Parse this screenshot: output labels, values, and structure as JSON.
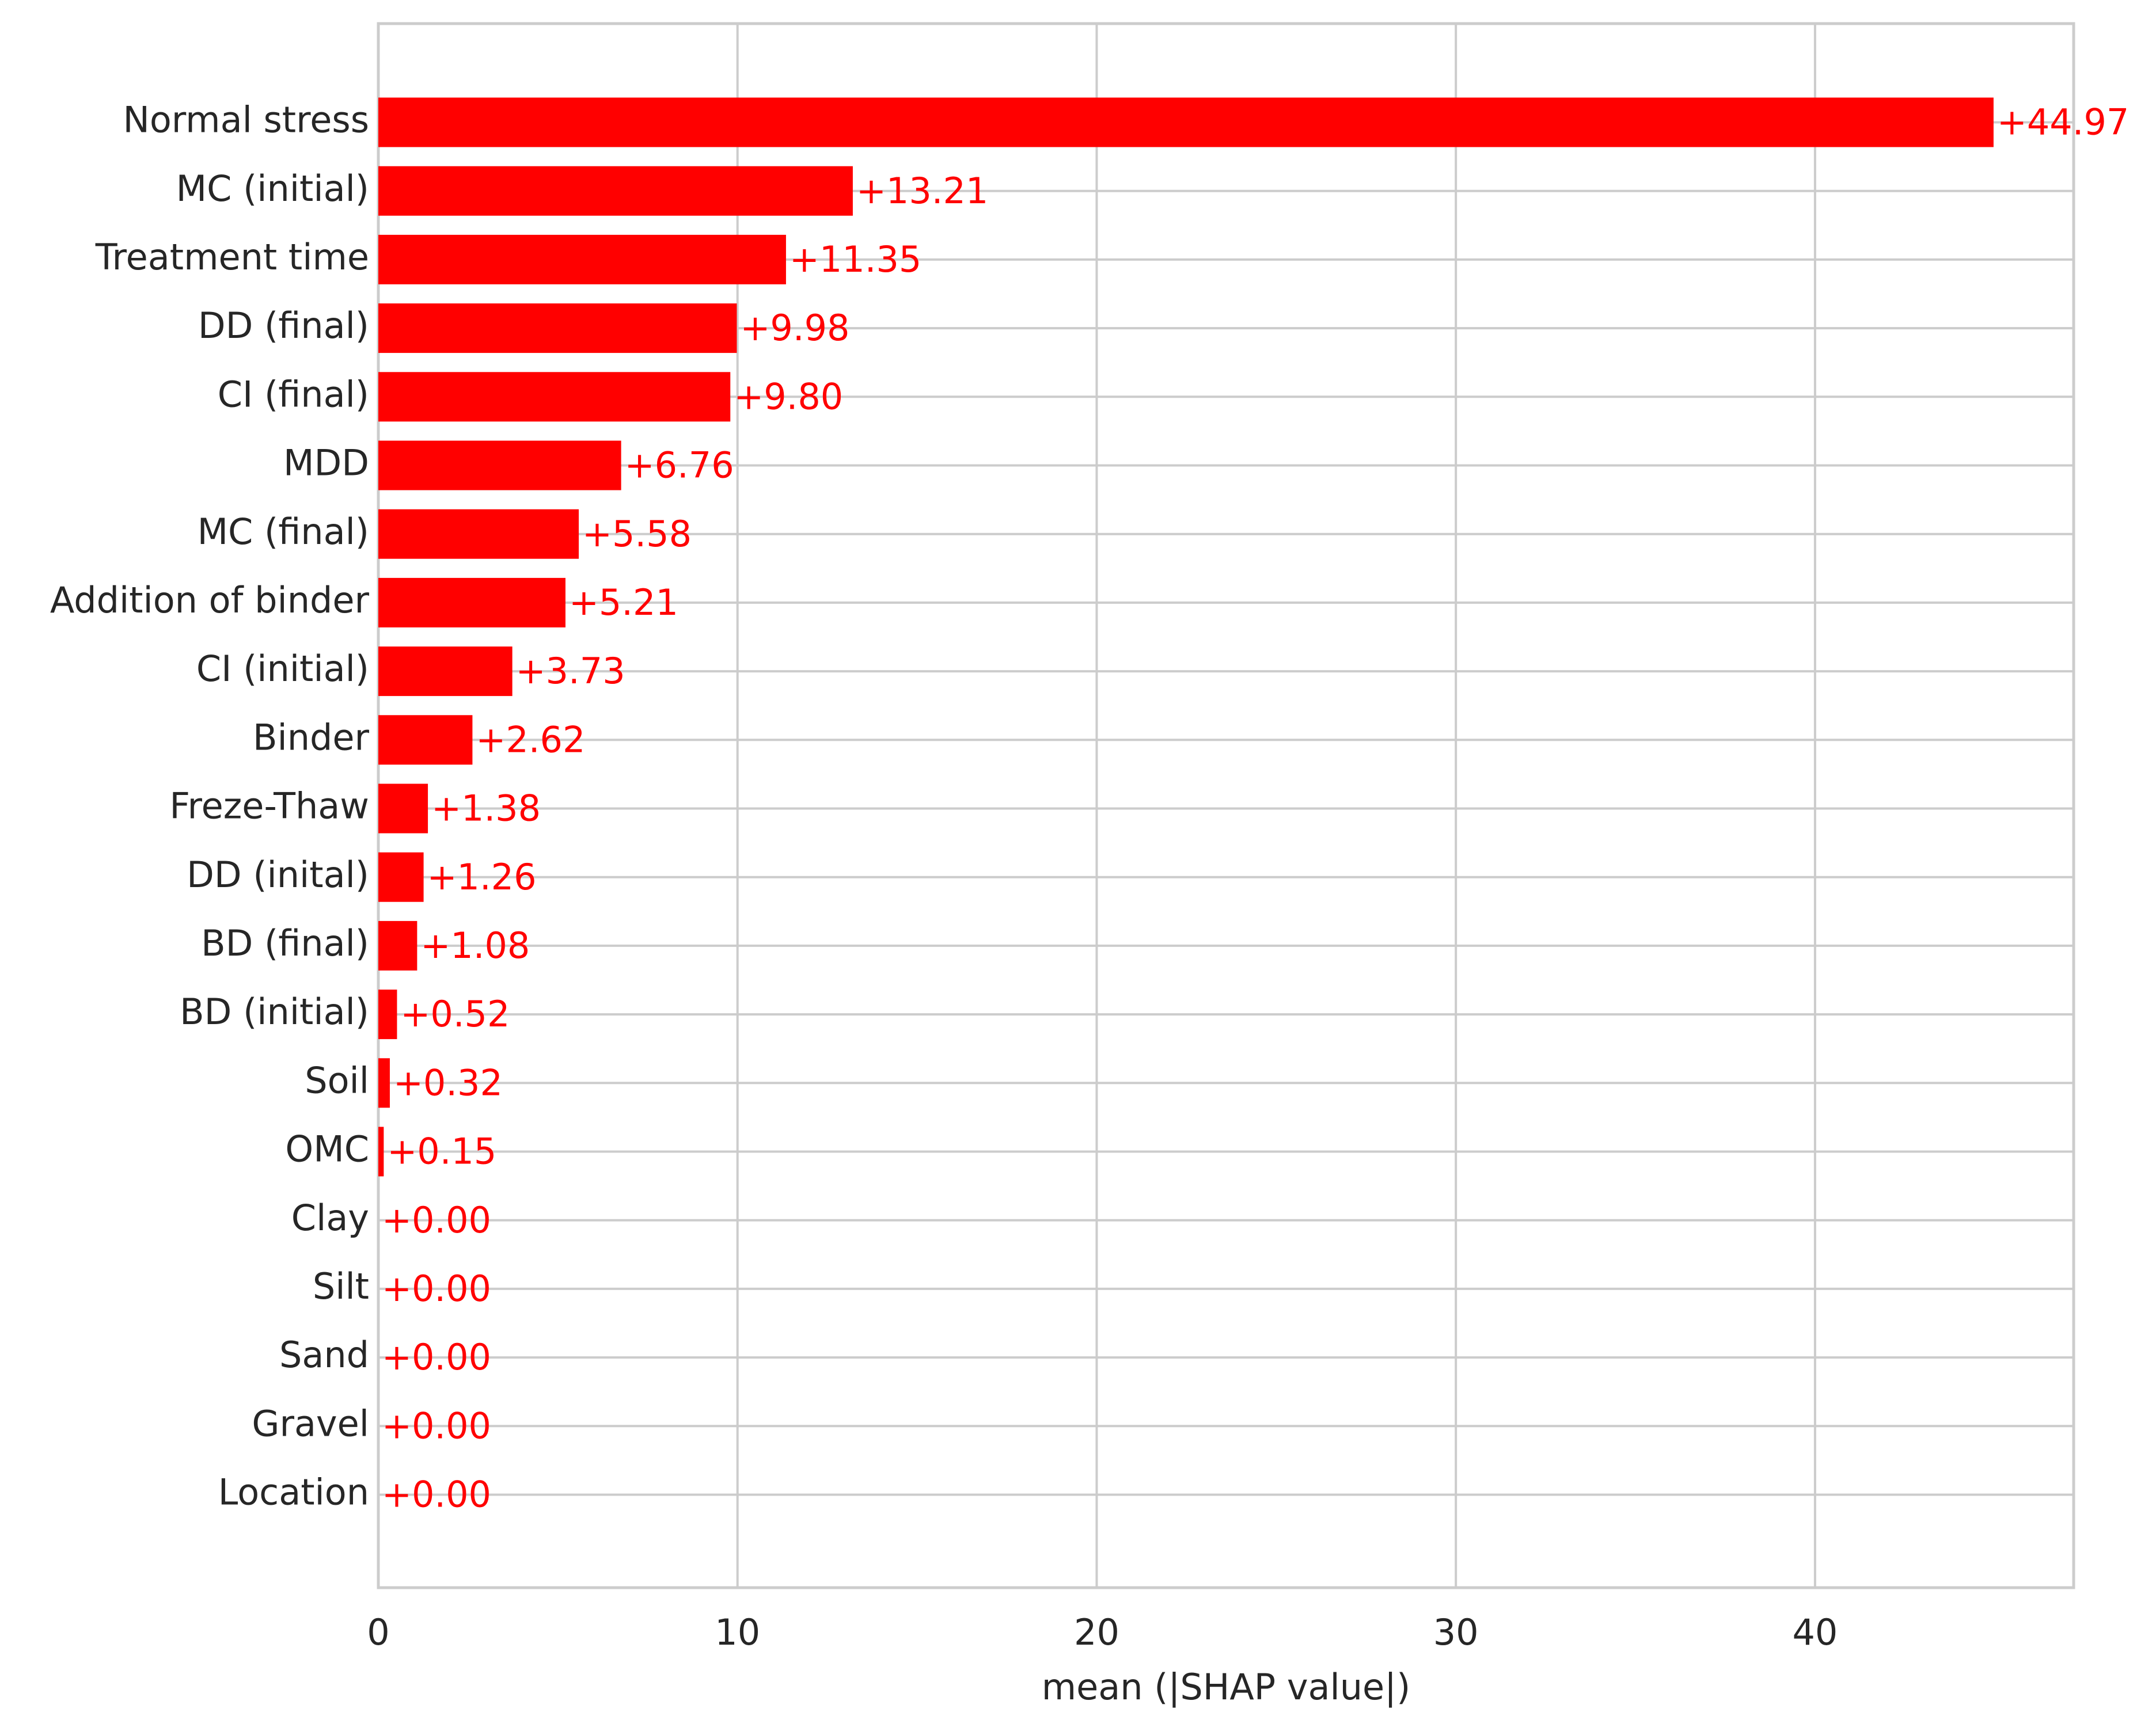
{
  "chart_data": {
    "type": "barh",
    "xlabel": "mean (|SHAP value|)",
    "categories": [
      "Normal stress",
      "MC (initial)",
      "Treatment time",
      "DD (final)",
      "CI (final)",
      "MDD",
      "MC (final)",
      "Addition of binder",
      "CI (initial)",
      "Binder",
      "Freze-Thaw",
      "DD (inital)",
      "BD (final)",
      "BD (initial)",
      "Soil",
      "OMC",
      "Clay",
      "Silt",
      "Sand",
      "Gravel",
      "Location"
    ],
    "values": [
      44.97,
      13.21,
      11.35,
      9.98,
      9.8,
      6.76,
      5.58,
      5.21,
      3.73,
      2.62,
      1.38,
      1.26,
      1.08,
      0.52,
      0.32,
      0.15,
      0,
      0,
      0,
      0,
      0
    ],
    "value_labels": [
      "+44.97",
      "+13.21",
      "+11.35",
      "+9.98",
      "+9.80",
      "+6.76",
      "+5.58",
      "+5.21",
      "+3.73",
      "+2.62",
      "+1.38",
      "+1.26",
      "+1.08",
      "+0.52",
      "+0.32",
      "+0.15",
      "+0.00",
      "+0.00",
      "+0.00",
      "+0.00",
      "+0.00"
    ],
    "color": "#ff0000",
    "xlim": [
      0,
      47.2
    ],
    "xticks": [
      0,
      10,
      20,
      30,
      40
    ],
    "grid": true
  }
}
